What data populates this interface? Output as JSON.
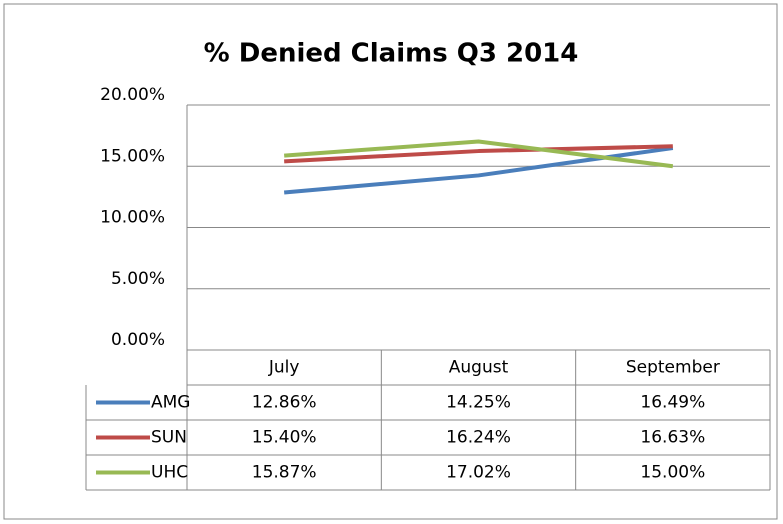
{
  "chart_data": {
    "type": "line",
    "title": "% Denied Claims Q3 2014",
    "categories": [
      "July",
      "August",
      "September"
    ],
    "series": [
      {
        "name": "AMG",
        "color": "#4a7ebb",
        "values": [
          12.86,
          14.25,
          16.49
        ],
        "value_labels": [
          "12.86%",
          "14.25%",
          "16.49%"
        ]
      },
      {
        "name": "SUN",
        "color": "#be4b48",
        "values": [
          15.4,
          16.24,
          16.63
        ],
        "value_labels": [
          "15.40%",
          "16.24%",
          "16.63%"
        ]
      },
      {
        "name": "UHC",
        "color": "#98b954",
        "values": [
          15.87,
          17.02,
          15.0
        ],
        "value_labels": [
          "15.87%",
          "17.02%",
          "15.00%"
        ]
      }
    ],
    "ylim": [
      0,
      20
    ],
    "yticks": [
      {
        "value": 0,
        "label": "0.00%"
      },
      {
        "value": 5,
        "label": "5.00%"
      },
      {
        "value": 10,
        "label": "10.00%"
      },
      {
        "value": 15,
        "label": "15.00%"
      },
      {
        "value": 20,
        "label": "20.00%"
      }
    ],
    "grid": true
  }
}
